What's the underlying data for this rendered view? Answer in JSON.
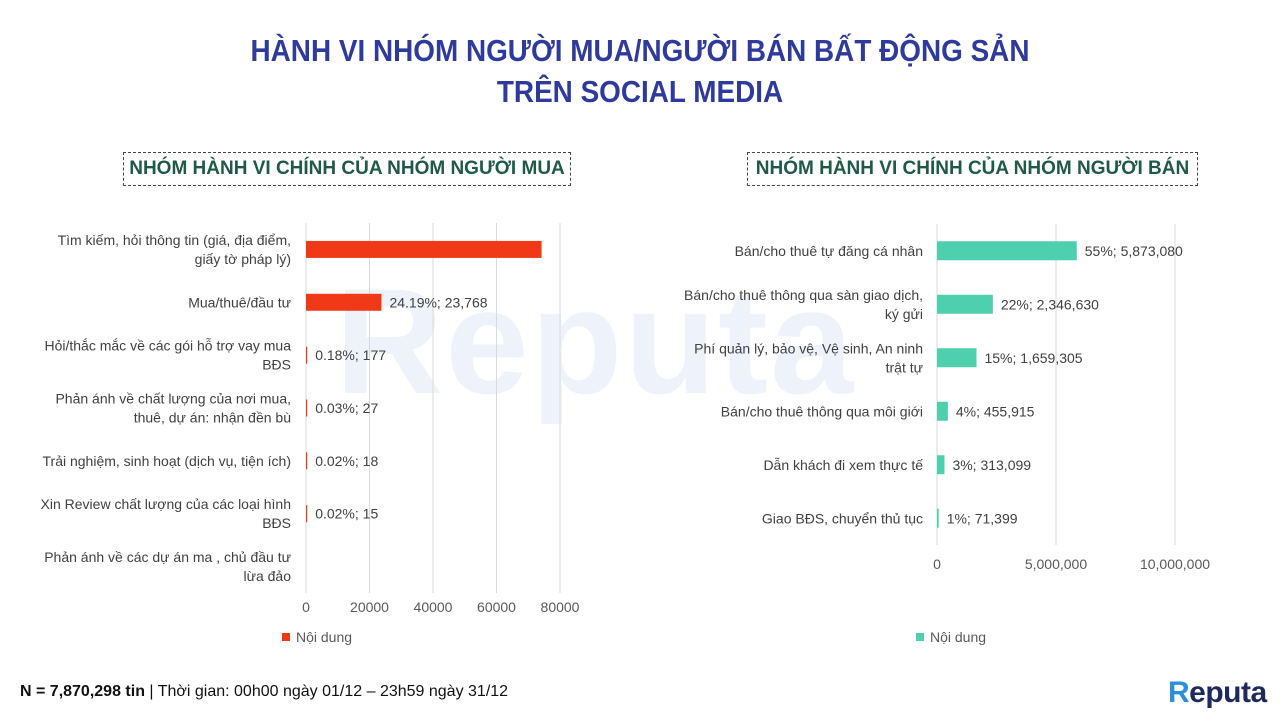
{
  "title": {
    "line1": "HÀNH VI NHÓM NGƯỜI MUA/NGƯỜI BÁN BẤT ĐỘNG SẢN",
    "line2": "TRÊN SOCIAL MEDIA"
  },
  "watermark": "Reputa",
  "buyer_panel_title": "NHÓM HÀNH VI CHÍNH CỦA NHÓM NGƯỜI MUA",
  "seller_panel_title": "NHÓM HÀNH VI CHÍNH CỦA NHÓM NGƯỜI BÁN",
  "footer": {
    "n_label": "N = 7,870,298 tin",
    "period": " | Thời gian: 00h00 ngày 01/12 – 23h59 ngày 31/12"
  },
  "logo": {
    "first": "R",
    "rest": "eputa"
  },
  "colors": {
    "buyer_bar": "#f03a17",
    "seller_bar": "#4ecfae",
    "title": "#2e3a9c",
    "panel_title": "#1f5a48"
  },
  "chart_data": [
    {
      "type": "bar",
      "orientation": "horizontal",
      "categories": [
        [
          "Tìm kiếm, hỏi thông tin (giá, địa điểm,",
          "giấy tờ pháp lý)"
        ],
        [
          "Mua/thuê/đầu tư"
        ],
        [
          "Hỏi/thắc mắc về các gói hỗ trợ vay mua",
          "BĐS"
        ],
        [
          "Phản ánh về chất lượng của nơi mua,",
          "thuê, dự án: nhận đền bù"
        ],
        [
          "Trải nghiệm, sinh hoạt (dịch vụ, tiện ích)"
        ],
        [
          "Xin Review chất lượng của các loại hình",
          "BĐS"
        ],
        [
          "Phản ánh về các dự án ma , chủ đầu tư",
          "lừa đảo"
        ]
      ],
      "values": [
        74200,
        23768,
        177,
        27,
        18,
        15,
        0
      ],
      "data_labels": [
        "",
        "24.19%; 23,768",
        "0.18%; 177",
        "0.03%; 27",
        "0.02%; 18",
        "0.02%; 15",
        ""
      ],
      "xlim": [
        0,
        80000
      ],
      "xticks": [
        0,
        20000,
        40000,
        60000,
        80000
      ],
      "xtick_labels": [
        "0",
        "20000",
        "40000",
        "60000",
        "80000"
      ],
      "legend": "Nội dung",
      "legend_position": "bottom",
      "grid": true
    },
    {
      "type": "bar",
      "orientation": "horizontal",
      "categories": [
        [
          "Bán/cho thuê tự đăng cá nhân"
        ],
        [
          "Bán/cho thuê thông qua sàn giao dịch,",
          "ký gửi"
        ],
        [
          "Phí quản lý, bảo vệ, Vệ sinh, An ninh",
          "trật tự"
        ],
        [
          "Bán/cho thuê thông qua môi giới"
        ],
        [
          "Dẫn khách đi xem thực tế"
        ],
        [
          "Giao BĐS, chuyển thủ tục"
        ]
      ],
      "values": [
        5873080,
        2346630,
        1659305,
        455915,
        313099,
        71399
      ],
      "data_labels": [
        "55%; 5,873,080",
        "22%; 2,346,630",
        "15%; 1,659,305",
        "4%; 455,915",
        "3%; 313,099",
        "1%; 71,399"
      ],
      "xlim": [
        0,
        10000000
      ],
      "xticks": [
        0,
        5000000,
        10000000
      ],
      "xtick_labels": [
        "0",
        "5,000,000",
        "10,000,000"
      ],
      "legend": "Nội dung",
      "legend_position": "bottom",
      "grid": true
    }
  ]
}
